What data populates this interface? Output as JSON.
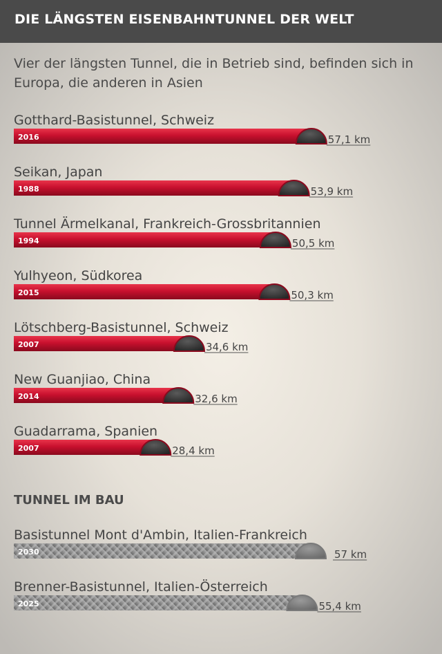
{
  "header": {
    "title": "DIE LÄNGSTEN EISENBAHNTUNNEL DER WELT"
  },
  "subtitle": "Vier der längsten Tunnel, die in Betrieb sind, befinden sich in Europa, die anderen in Asien",
  "section_construction": "TUNNEL IM BAU",
  "colors": {
    "header_bg": "#4a4a4a",
    "bar_red": "#c8102e",
    "bar_gray": "#8c8c8c",
    "tunnel_cap": "#3a3a3a"
  },
  "chart_data": [
    {
      "type": "bar",
      "orientation": "horizontal",
      "group": "in_betrieb",
      "categories": [
        "Gotthard-Basistunnel, Schweiz",
        "Seikan, Japan",
        "Tunnel Ärmelkanal, Frankreich-Grossbritannien",
        "Yulhyeon, Südkorea",
        "Lötschberg-Basistunnel, Schweiz",
        "New Guanjiao, China",
        "Guadarrama, Spanien"
      ],
      "years": [
        "2016",
        "1988",
        "1994",
        "2015",
        "2007",
        "2014",
        "2007"
      ],
      "values": [
        57.1,
        53.9,
        50.5,
        50.3,
        34.6,
        32.6,
        28.4
      ],
      "value_labels": [
        "57,1 km",
        "53,9 km",
        "50,5 km",
        "50,3 km",
        "34,6 km",
        "32,6 km",
        "28,4 km"
      ],
      "unit": "km",
      "color": "#c8102e"
    },
    {
      "type": "bar",
      "orientation": "horizontal",
      "group": "im_bau",
      "categories": [
        "Basistunnel Mont d'Ambin, Italien-Frankreich",
        "Brenner-Basistunnel, Italien-Österreich"
      ],
      "years": [
        "2030",
        "2025"
      ],
      "values": [
        57,
        55.4
      ],
      "value_labels": [
        "57 km",
        "55,4 km"
      ],
      "unit": "km",
      "color": "#8c8c8c"
    }
  ]
}
